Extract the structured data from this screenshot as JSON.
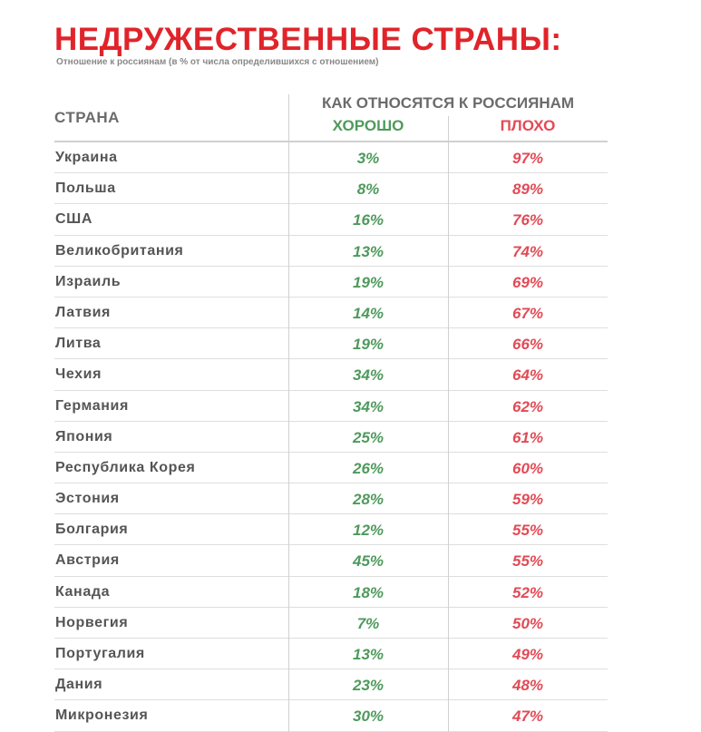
{
  "colors": {
    "title": "#e0242a",
    "good": "#4e9a5c",
    "bad": "#e24a55",
    "header": "#6b6b6b",
    "text": "#555555"
  },
  "chart_data": {
    "type": "table",
    "title": "НЕДРУЖЕСТВЕННЫЕ СТРАНЫ:",
    "subtitle": "Отношение к россиянам (в % от числа определившихся с отношением)",
    "columns": {
      "country": "СТРАНА",
      "group": "КАК ОТНОСЯТСЯ К РОССИЯНАМ",
      "good": "ХОРОШО",
      "bad": "ПЛОХО"
    },
    "rows": [
      {
        "country": "Украина",
        "good": "3%",
        "bad": "97%"
      },
      {
        "country": "Польша",
        "good": "8%",
        "bad": "89%"
      },
      {
        "country": "США",
        "good": "16%",
        "bad": "76%"
      },
      {
        "country": "Великобритания",
        "good": "13%",
        "bad": "74%"
      },
      {
        "country": "Израиль",
        "good": "19%",
        "bad": "69%"
      },
      {
        "country": "Латвия",
        "good": "14%",
        "bad": "67%"
      },
      {
        "country": "Литва",
        "good": "19%",
        "bad": "66%"
      },
      {
        "country": "Чехия",
        "good": "34%",
        "bad": "64%"
      },
      {
        "country": "Германия",
        "good": "34%",
        "bad": "62%"
      },
      {
        "country": "Япония",
        "good": "25%",
        "bad": "61%"
      },
      {
        "country": "Республика Корея",
        "good": "26%",
        "bad": "60%"
      },
      {
        "country": "Эстония",
        "good": "28%",
        "bad": "59%"
      },
      {
        "country": "Болгария",
        "good": "12%",
        "bad": "55%"
      },
      {
        "country": "Австрия",
        "good": "45%",
        "bad": "55%"
      },
      {
        "country": "Канада",
        "good": "18%",
        "bad": "52%"
      },
      {
        "country": "Норвегия",
        "good": "7%",
        "bad": "50%"
      },
      {
        "country": "Португалия",
        "good": "13%",
        "bad": "49%"
      },
      {
        "country": "Дания",
        "good": "23%",
        "bad": "48%"
      },
      {
        "country": "Микронезия",
        "good": "30%",
        "bad": "47%"
      }
    ]
  }
}
